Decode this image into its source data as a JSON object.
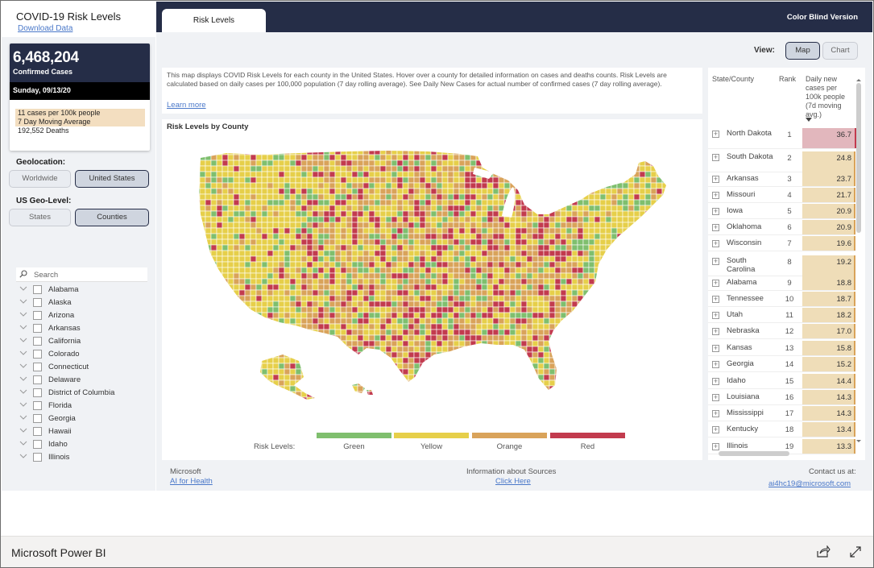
{
  "app": {
    "title": "COVID-19 Risk Levels",
    "download_label": "Download Data"
  },
  "summary": {
    "confirmed_cases": "6,468,204",
    "confirmed_label": "Confirmed Cases",
    "date": "Sunday, 09/13/20",
    "stats": [
      "11 cases per 100k people",
      "7 Day Moving Average",
      "192,552 Deaths"
    ]
  },
  "geolocation": {
    "label": "Geolocation:",
    "options": [
      "Worldwide",
      "United States"
    ],
    "selected": "United States"
  },
  "geo_level": {
    "label": "US Geo-Level:",
    "options": [
      "States",
      "Counties"
    ],
    "selected": "Counties"
  },
  "search": {
    "placeholder": "Search"
  },
  "states": [
    "Alabama",
    "Alaska",
    "Arizona",
    "Arkansas",
    "California",
    "Colorado",
    "Connecticut",
    "Delaware",
    "District of Columbia",
    "Florida",
    "Georgia",
    "Hawaii",
    "Idaho",
    "Illinois"
  ],
  "header": {
    "tab_label": "Risk Levels",
    "color_blind_label": "Color Blind Version"
  },
  "view": {
    "label": "View:",
    "options": [
      "Map",
      "Chart"
    ],
    "selected": "Map"
  },
  "description": {
    "text": "This map displays COVID Risk Levels for each county in the United States. Hover over a county for detailed information on cases and deaths counts. Risk Levels are calculated based on daily cases per 100,000 population (7 day rolling average). See Daily New Cases for actual number of confirmed cases (7 day rolling average).",
    "learn_more": "Learn more"
  },
  "map": {
    "title": "Risk Levels by County",
    "legend_label": "Risk Levels:",
    "levels": [
      {
        "name": "Green",
        "color": "#7fbf6e"
      },
      {
        "name": "Yellow",
        "color": "#e6cf4a"
      },
      {
        "name": "Orange",
        "color": "#d9a35a"
      },
      {
        "name": "Red",
        "color": "#c23b4e"
      }
    ]
  },
  "table": {
    "headers": {
      "state": "State/County",
      "rank": "Rank",
      "value": "Daily new cases per 100k people (7d moving avg.)"
    },
    "highlight_color": "#e2b7bd",
    "bar_color": "#efddb8",
    "rows": [
      {
        "name": "North Dakota",
        "rank": "1",
        "value": "36.7"
      },
      {
        "name": "South Dakota",
        "rank": "2",
        "value": "24.8"
      },
      {
        "name": "Arkansas",
        "rank": "3",
        "value": "23.7"
      },
      {
        "name": "Missouri",
        "rank": "4",
        "value": "21.7"
      },
      {
        "name": "Iowa",
        "rank": "5",
        "value": "20.9"
      },
      {
        "name": "Oklahoma",
        "rank": "6",
        "value": "20.9"
      },
      {
        "name": "Wisconsin",
        "rank": "7",
        "value": "19.6"
      },
      {
        "name": "South Carolina",
        "rank": "8",
        "value": "19.2"
      },
      {
        "name": "Alabama",
        "rank": "9",
        "value": "18.8"
      },
      {
        "name": "Tennessee",
        "rank": "10",
        "value": "18.7"
      },
      {
        "name": "Utah",
        "rank": "11",
        "value": "18.2"
      },
      {
        "name": "Nebraska",
        "rank": "12",
        "value": "17.0"
      },
      {
        "name": "Kansas",
        "rank": "13",
        "value": "15.8"
      },
      {
        "name": "Georgia",
        "rank": "14",
        "value": "15.2"
      },
      {
        "name": "Idaho",
        "rank": "15",
        "value": "14.4"
      },
      {
        "name": "Louisiana",
        "rank": "16",
        "value": "14.3"
      },
      {
        "name": "Mississippi",
        "rank": "17",
        "value": "14.3"
      },
      {
        "name": "Kentucky",
        "rank": "18",
        "value": "13.4"
      },
      {
        "name": "Illinois",
        "rank": "19",
        "value": "13.3"
      }
    ]
  },
  "footer": {
    "left_title": "Microsoft",
    "left_link": "AI for Health",
    "center_title": "Information about Sources",
    "center_link": "Click Here",
    "right_title": "Contact us at:",
    "right_link": "ai4hc19@microsoft.com"
  },
  "powerbi": {
    "brand": "Microsoft Power BI",
    "icons": [
      "share-icon",
      "expand-icon"
    ]
  }
}
